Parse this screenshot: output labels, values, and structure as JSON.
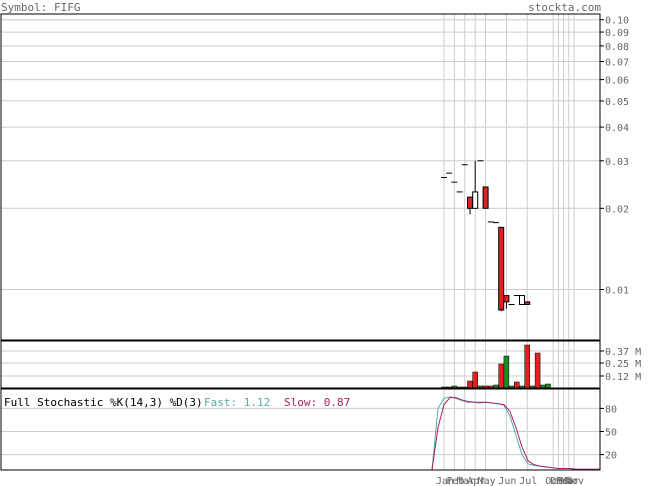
{
  "header": {
    "symbol_label": "Symbol: FIFG",
    "site": "stockta.com"
  },
  "colors": {
    "up_candle": "#ffffff",
    "down_candle": "#dd2222",
    "volume_up": "#228822",
    "volume_down": "#dd2222",
    "fast_line": "#55aaaa",
    "slow_line": "#aa2266",
    "grid": "#cccccc",
    "text": "#666666"
  },
  "stochastic": {
    "title": "Full Stochastic %K(14,3) %D(3)",
    "fast_label": "Fast: 1.12",
    "slow_label": "Slow: 0.87"
  },
  "chart_data": [
    {
      "type": "candlestick",
      "title": "Symbol: FIFG",
      "y_scale": "log",
      "ylim": [
        0.0065,
        0.105
      ],
      "y_ticks": [
        0.1,
        0.09,
        0.08,
        0.07,
        0.06,
        0.05,
        0.04,
        0.03,
        0.02,
        0.01
      ],
      "y_tick_labels": [
        "0.10",
        "0.09",
        "0.08",
        "0.07",
        "0.06",
        "0.05",
        "0.04",
        "0.03",
        "0.02",
        "0.01"
      ],
      "x_tick_labels": [
        "Jan",
        "Feb",
        "Mar",
        "Apr",
        "May",
        "Jun",
        "Jul",
        "Oct",
        "Dec",
        "Feb",
        "Mar",
        "Nov"
      ],
      "x_ticks": [
        0,
        2,
        4,
        6,
        8,
        12,
        16,
        21,
        22,
        23,
        24,
        25
      ],
      "candles": [
        {
          "i": 0,
          "open": 0.026,
          "high": 0.026,
          "low": 0.026,
          "close": 0.026
        },
        {
          "i": 1,
          "open": 0.027,
          "high": 0.027,
          "low": 0.027,
          "close": 0.027
        },
        {
          "i": 2,
          "open": 0.025,
          "high": 0.025,
          "low": 0.025,
          "close": 0.025
        },
        {
          "i": 3,
          "open": 0.023,
          "high": 0.023,
          "low": 0.023,
          "close": 0.023
        },
        {
          "i": 4,
          "open": 0.029,
          "high": 0.029,
          "low": 0.029,
          "close": 0.029
        },
        {
          "i": 5,
          "open": 0.022,
          "high": 0.022,
          "low": 0.019,
          "close": 0.02
        },
        {
          "i": 6,
          "open": 0.02,
          "high": 0.03,
          "low": 0.02,
          "close": 0.023
        },
        {
          "i": 7,
          "open": 0.03,
          "high": 0.03,
          "low": 0.03,
          "close": 0.03
        },
        {
          "i": 8,
          "open": 0.024,
          "high": 0.024,
          "low": 0.02,
          "close": 0.02
        },
        {
          "i": 9,
          "open": 0.0178,
          "high": 0.0178,
          "low": 0.0178,
          "close": 0.0178
        },
        {
          "i": 10,
          "open": 0.0177,
          "high": 0.0177,
          "low": 0.0177,
          "close": 0.0177
        },
        {
          "i": 11,
          "open": 0.017,
          "high": 0.017,
          "low": 0.0083,
          "close": 0.0084
        },
        {
          "i": 12,
          "open": 0.0095,
          "high": 0.0095,
          "low": 0.0085,
          "close": 0.009
        },
        {
          "i": 13,
          "open": 0.0088,
          "high": 0.0088,
          "low": 0.0088,
          "close": 0.0088
        },
        {
          "i": 14,
          "open": 0.0095,
          "high": 0.0095,
          "low": 0.0095,
          "close": 0.0095
        },
        {
          "i": 15,
          "open": 0.0088,
          "high": 0.0095,
          "low": 0.0088,
          "close": 0.0095
        },
        {
          "i": 16,
          "open": 0.009,
          "high": 0.009,
          "low": 0.0088,
          "close": 0.0088
        }
      ]
    },
    {
      "type": "bar",
      "title": "Volume",
      "y_tick_labels": [
        "0.37 M",
        "0.25 M",
        "0.12 M"
      ],
      "y_ticks": [
        0.37,
        0.25,
        0.12
      ],
      "ylim": [
        0,
        0.47
      ],
      "x_index": [
        0,
        1,
        2,
        3,
        4,
        5,
        6,
        7,
        8,
        9,
        10,
        11,
        12,
        13,
        14,
        15,
        16,
        17,
        18,
        19,
        20
      ],
      "values": [
        0.01,
        0.01,
        0.02,
        0.01,
        0.01,
        0.07,
        0.16,
        0.02,
        0.02,
        0.02,
        0.03,
        0.24,
        0.32,
        0.02,
        0.06,
        0.02,
        0.43,
        0.02,
        0.35,
        0.03,
        0.04
      ],
      "direction": [
        "up",
        "down",
        "up",
        "down",
        "up",
        "down",
        "down",
        "up",
        "down",
        "down",
        "up",
        "down",
        "up",
        "up",
        "down",
        "up",
        "down",
        "up",
        "down",
        "up",
        "up"
      ]
    },
    {
      "type": "line",
      "title": "Full Stochastic %K(14,3) %D(3)",
      "ylim": [
        0,
        100
      ],
      "y_ticks": [
        80,
        50,
        20
      ],
      "y_tick_labels": [
        "80",
        "50",
        "20"
      ],
      "series": [
        {
          "name": "Fast",
          "values": [
            0,
            80,
            93,
            95,
            93,
            90,
            88,
            88,
            87,
            88,
            87,
            86,
            84,
            70,
            45,
            20,
            8,
            6,
            5,
            4,
            3,
            2,
            2,
            2,
            1,
            1,
            1,
            1,
            1
          ]
        },
        {
          "name": "Slow",
          "values": [
            0,
            55,
            85,
            94,
            94,
            91,
            89,
            88,
            88,
            88,
            87,
            86,
            85,
            76,
            55,
            30,
            12,
            7,
            5,
            4,
            3,
            2,
            2,
            2,
            1,
            1,
            1,
            1,
            1
          ]
        }
      ]
    }
  ]
}
